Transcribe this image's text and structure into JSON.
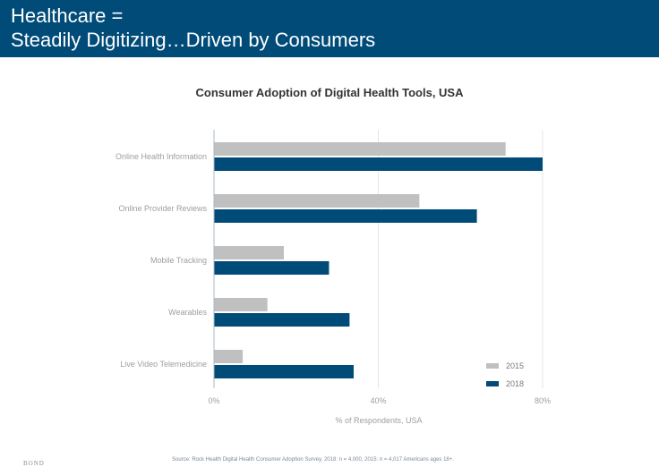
{
  "slide": {
    "title_line1": "Healthcare =",
    "title_line2": "Steadily Digitizing…Driven by Consumers",
    "source": "Source: Rock Health Digital Health Consumer Adoption Survey. 2018: n = 4,000, 2015: n = 4,017 Americans ages 18+.",
    "footer_logo": "BOND"
  },
  "colors": {
    "header_bg": "#004b78",
    "series_2015": "#c0c0c0",
    "series_2018": "#004b78"
  },
  "chart_data": {
    "type": "bar",
    "orientation": "horizontal",
    "title": "Consumer Adoption of Digital Health Tools, USA",
    "xlabel": "% of Respondents, USA",
    "ylabel": "",
    "categories": [
      "Online Health Information",
      "Online Provider Reviews",
      "Mobile Tracking",
      "Wearables",
      "Live Video Telemedicine"
    ],
    "series": [
      {
        "name": "2015",
        "color": "#c0c0c0",
        "values": [
          71,
          50,
          17,
          13,
          7
        ]
      },
      {
        "name": "2018",
        "color": "#004b78",
        "values": [
          80,
          64,
          28,
          33,
          34
        ]
      }
    ],
    "xlim": [
      0,
      80
    ],
    "x_ticks": [
      0,
      40,
      80
    ],
    "x_tick_labels": [
      "0%",
      "40%",
      "80%"
    ],
    "grid": true,
    "legend_position": "bottom-right"
  }
}
